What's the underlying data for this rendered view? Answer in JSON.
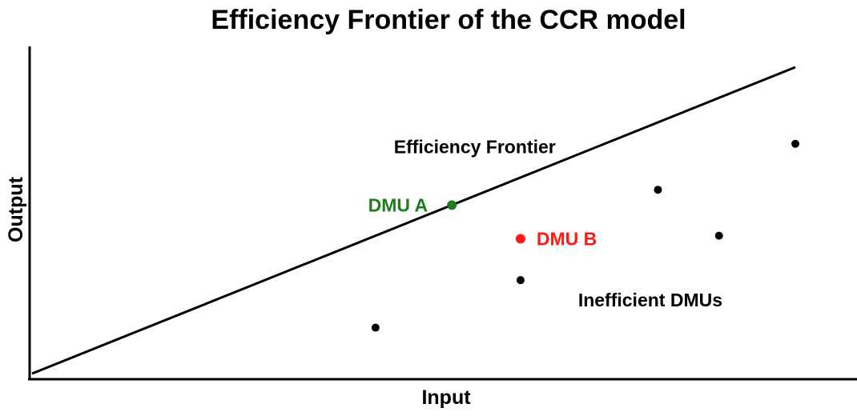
{
  "title": "Efficiency Frontier of the CCR model",
  "colors": {
    "ink": "#000000",
    "efficient": "#1e7e1e",
    "highlight": "#ff1a1a"
  },
  "chart_data": {
    "type": "scatter",
    "title": "Efficiency Frontier of the CCR model",
    "xlabel": "Input",
    "ylabel": "Output",
    "xlim": [
      0,
      1000
    ],
    "ylim": [
      0,
      1000
    ],
    "frontier": {
      "label": "Efficiency Frontier",
      "points": [
        [
          0,
          0
        ],
        [
          1000,
          1000
        ]
      ]
    },
    "points": [
      {
        "name": "dmu-a",
        "label": "DMU A",
        "x": 550,
        "y": 550,
        "color": "#1e7e1e",
        "label_side": "left"
      },
      {
        "name": "dmu-b",
        "label": "DMU B",
        "x": 640,
        "y": 440,
        "color": "#ff1a1a",
        "label_side": "right"
      },
      {
        "name": "dmu-1",
        "label": "",
        "x": 450,
        "y": 150,
        "color": "#000000"
      },
      {
        "name": "dmu-2",
        "label": "",
        "x": 640,
        "y": 305,
        "color": "#000000"
      },
      {
        "name": "dmu-3",
        "label": "",
        "x": 820,
        "y": 600,
        "color": "#000000"
      },
      {
        "name": "dmu-4",
        "label": "",
        "x": 900,
        "y": 450,
        "color": "#000000"
      },
      {
        "name": "dmu-5",
        "label": "",
        "x": 1000,
        "y": 750,
        "color": "#000000"
      }
    ],
    "annotations": [
      {
        "name": "frontier-annotation",
        "text": "Efficiency Frontier",
        "x": 580,
        "y": 740
      },
      {
        "name": "inefficient-annotation",
        "text": "Inefficient DMUs",
        "x": 810,
        "y": 240
      }
    ]
  }
}
